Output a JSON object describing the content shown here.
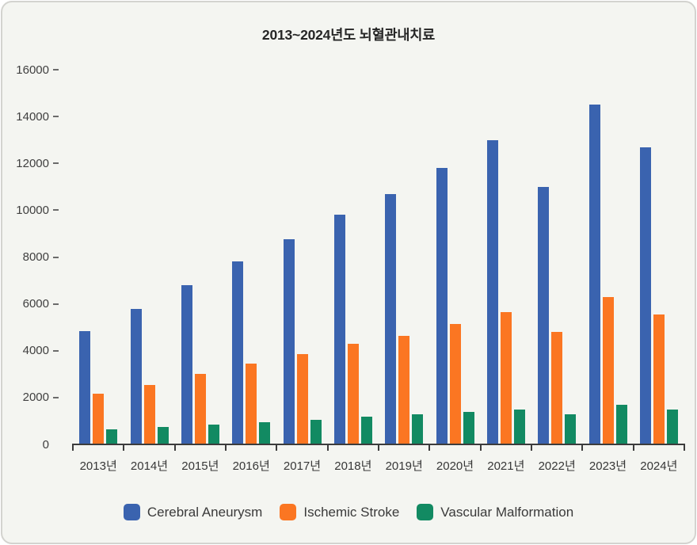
{
  "window": {
    "background": "#FFFFFF",
    "card_background": "#F4F5F1",
    "card_border_color": "#D3D3CF"
  },
  "chart_data": {
    "type": "bar",
    "title": "2013~2024년도 뇌혈관내치료",
    "categories": [
      "2013년",
      "2014년",
      "2015년",
      "2016년",
      "2017년",
      "2018년",
      "2019년",
      "2020년",
      "2021년",
      "2022년",
      "2023년",
      "2024년"
    ],
    "series": [
      {
        "name": "Cerebral Aneurysm",
        "color": "#3A63AF",
        "values": [
          4850,
          5800,
          6800,
          7800,
          8750,
          9800,
          10700,
          11800,
          13000,
          11000,
          14500,
          12700
        ]
      },
      {
        "name": "Ischemic Stroke",
        "color": "#FB7622",
        "values": [
          2150,
          2550,
          3000,
          3450,
          3850,
          4300,
          4650,
          5150,
          5650,
          4800,
          6300,
          5550
        ]
      },
      {
        "name": "Vascular Malformation",
        "color": "#128A62",
        "values": [
          650,
          750,
          850,
          950,
          1050,
          1200,
          1300,
          1400,
          1500,
          1300,
          1700,
          1500
        ]
      }
    ],
    "xlabel": "",
    "ylabel": "",
    "ylim": [
      0,
      16000
    ],
    "ytick_step": 2000,
    "ytick_labels": [
      "0",
      "2000",
      "4000",
      "6000",
      "8000",
      "10000",
      "12000",
      "14000",
      "16000"
    ],
    "grid": false,
    "legend_position": "bottom",
    "axis_color": "#3C3C3C",
    "text_color": "#3A3A3A"
  }
}
